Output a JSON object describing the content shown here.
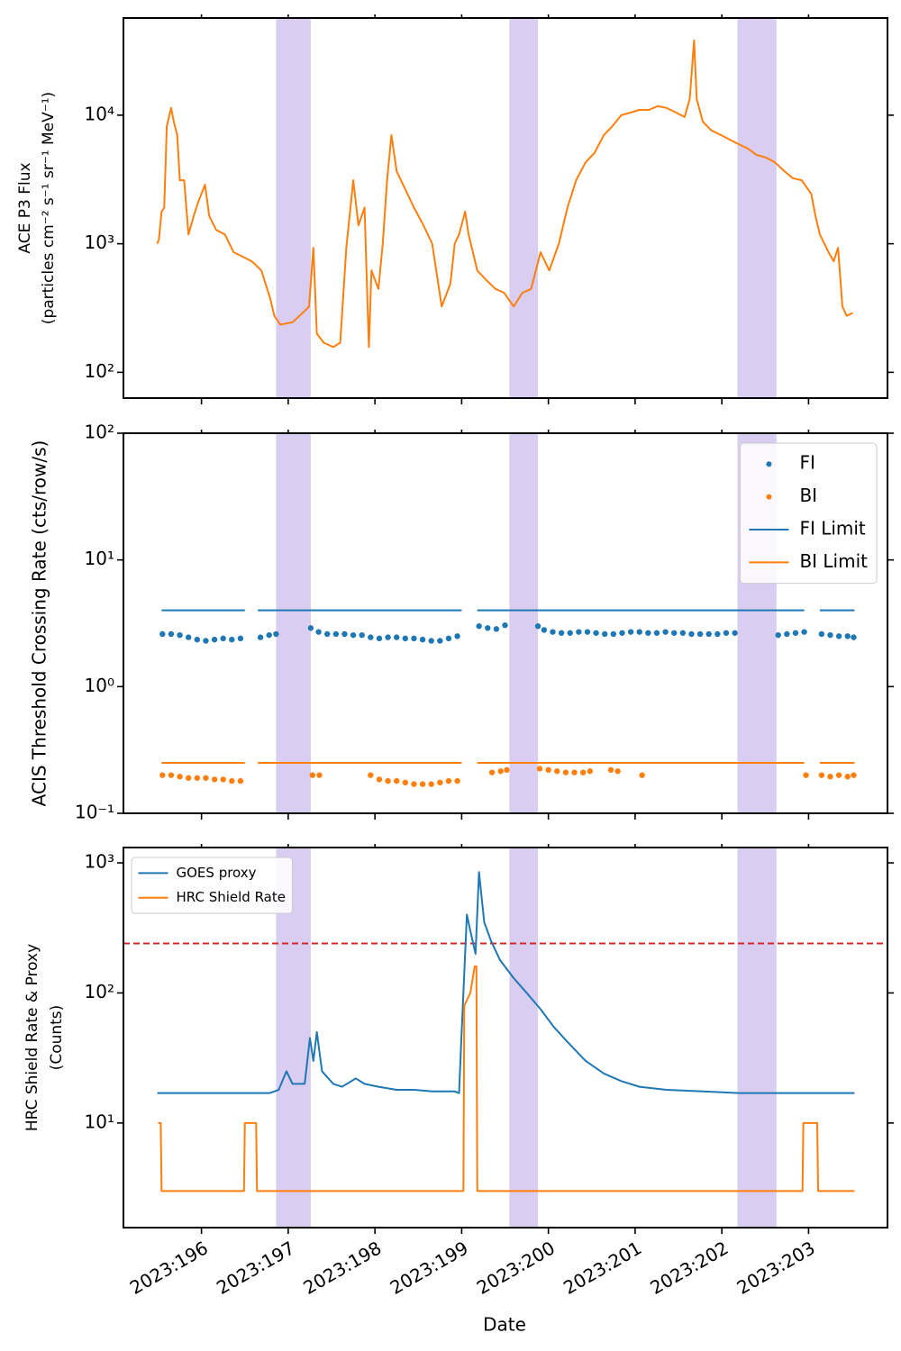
{
  "chart_data": [
    {
      "type": "line",
      "ylabel": [
        "ACE P3 Flux",
        "(particles cm⁻² s⁻¹ sr⁻¹ MeV⁻¹)"
      ],
      "ylog": true,
      "xlim": [
        195.1,
        203.91
      ],
      "ylim": [
        63,
        57000
      ],
      "xticks": [
        196,
        197,
        198,
        199,
        200,
        201,
        202,
        203
      ],
      "yticks": [
        {
          "value": 100,
          "label": "10²"
        },
        {
          "value": 1000,
          "label": "10³"
        },
        {
          "value": 10000,
          "label": "10⁴"
        }
      ],
      "spans": [
        [
          196.86,
          197.26
        ],
        [
          199.55,
          199.88
        ],
        [
          202.18,
          202.63
        ]
      ],
      "span_color": "#9370db",
      "series": [
        {
          "color": "#ff7f0e",
          "x": [
            195.49,
            195.51,
            195.54,
            195.57,
            195.6,
            195.65,
            195.68,
            195.72,
            195.75,
            195.8,
            195.85,
            195.91,
            195.96,
            196.04,
            196.09,
            196.17,
            196.27,
            196.37,
            196.48,
            196.58,
            196.69,
            196.79,
            196.84,
            196.91,
            197.05,
            197.19,
            197.24,
            197.29,
            197.33,
            197.41,
            197.52,
            197.6,
            197.67,
            197.75,
            197.81,
            197.88,
            197.93,
            197.96,
            198.04,
            198.09,
            198.14,
            198.19,
            198.25,
            198.35,
            198.45,
            198.56,
            198.66,
            198.77,
            198.87,
            198.92,
            198.97,
            199.04,
            199.08,
            199.18,
            199.28,
            199.39,
            199.49,
            199.6,
            199.7,
            199.8,
            199.91,
            200.01,
            200.12,
            200.22,
            200.32,
            200.43,
            200.53,
            200.64,
            200.74,
            200.84,
            200.95,
            201.05,
            201.16,
            201.26,
            201.36,
            201.47,
            201.57,
            201.63,
            201.68,
            201.71,
            201.78,
            201.88,
            201.99,
            202.09,
            202.19,
            202.3,
            202.4,
            202.51,
            202.61,
            202.72,
            202.82,
            202.92,
            203.03,
            203.08,
            203.13,
            203.23,
            203.29,
            203.34,
            203.39,
            203.44,
            203.51
          ],
          "values": [
            1000,
            1090,
            1780,
            1910,
            8240,
            11400,
            8930,
            7010,
            3120,
            3120,
            1180,
            1640,
            2090,
            2880,
            1640,
            1280,
            1180,
            860,
            790,
            730,
            620,
            380,
            275,
            235,
            245,
            300,
            325,
            930,
            200,
            170,
            157,
            170,
            930,
            3120,
            1390,
            1910,
            157,
            620,
            445,
            1000,
            3120,
            7010,
            3670,
            2650,
            1910,
            1390,
            1000,
            325,
            490,
            1000,
            1180,
            1780,
            1180,
            620,
            525,
            445,
            415,
            325,
            415,
            445,
            860,
            620,
            1000,
            1910,
            3120,
            4310,
            5070,
            7010,
            8240,
            10000,
            10500,
            11000,
            11000,
            11750,
            11400,
            10500,
            9680,
            13380,
            38200,
            13380,
            8930,
            7600,
            7010,
            6460,
            5970,
            5500,
            4910,
            4680,
            4310,
            3670,
            3230,
            3120,
            2450,
            1640,
            1180,
            860,
            730,
            930,
            325,
            275,
            290
          ]
        }
      ]
    },
    {
      "type": "scatter",
      "ylabel": [
        "ACIS Threshold Crossing Rate (cts/row/s)"
      ],
      "ylog": true,
      "xlim": [
        195.1,
        203.91
      ],
      "ylim": [
        0.1,
        100
      ],
      "xticks": [
        196,
        197,
        198,
        199,
        200,
        201,
        202,
        203
      ],
      "yticks": [
        {
          "value": 0.1,
          "label": "10⁻¹"
        },
        {
          "value": 1,
          "label": "10⁰"
        },
        {
          "value": 10,
          "label": "10¹"
        },
        {
          "value": 100,
          "label": "10²"
        }
      ],
      "spans": [
        [
          196.86,
          197.26
        ],
        [
          199.55,
          199.88
        ],
        [
          202.18,
          202.63
        ]
      ],
      "span_color": "#9370db",
      "legend": "upper right",
      "series": [
        {
          "name": "FI",
          "type": "scatter",
          "color": "#1f77b4",
          "x": [
            195.55,
            195.65,
            195.75,
            195.85,
            195.95,
            196.05,
            196.15,
            196.25,
            196.35,
            196.45,
            196.68,
            196.78,
            196.86,
            197.26,
            197.35,
            197.45,
            197.55,
            197.65,
            197.75,
            197.85,
            197.95,
            198.05,
            198.15,
            198.25,
            198.35,
            198.45,
            198.55,
            198.65,
            198.75,
            198.85,
            198.95,
            199.2,
            199.3,
            199.4,
            199.5,
            199.88,
            199.95,
            200.05,
            200.15,
            200.25,
            200.35,
            200.45,
            200.55,
            200.65,
            200.75,
            200.85,
            200.95,
            201.05,
            201.15,
            201.25,
            201.35,
            201.45,
            201.55,
            201.65,
            201.75,
            201.85,
            201.95,
            202.05,
            202.15,
            202.65,
            202.75,
            202.85,
            202.95,
            203.15,
            203.25,
            203.35,
            203.45,
            203.52
          ],
          "values": [
            2.6,
            2.6,
            2.55,
            2.45,
            2.35,
            2.3,
            2.35,
            2.4,
            2.35,
            2.4,
            2.45,
            2.55,
            2.6,
            2.9,
            2.7,
            2.6,
            2.6,
            2.6,
            2.55,
            2.55,
            2.45,
            2.4,
            2.45,
            2.45,
            2.4,
            2.4,
            2.35,
            2.3,
            2.3,
            2.4,
            2.5,
            3.0,
            2.9,
            2.85,
            3.05,
            3.0,
            2.8,
            2.7,
            2.65,
            2.65,
            2.7,
            2.7,
            2.65,
            2.6,
            2.6,
            2.65,
            2.7,
            2.7,
            2.65,
            2.65,
            2.7,
            2.65,
            2.65,
            2.6,
            2.6,
            2.6,
            2.6,
            2.65,
            2.65,
            2.55,
            2.6,
            2.65,
            2.7,
            2.6,
            2.55,
            2.5,
            2.5,
            2.45
          ]
        },
        {
          "name": "BI",
          "type": "scatter",
          "color": "#ff7f0e",
          "x": [
            195.55,
            195.65,
            195.75,
            195.85,
            195.95,
            196.05,
            196.15,
            196.25,
            196.35,
            196.45,
            197.28,
            197.36,
            197.95,
            198.05,
            198.15,
            198.25,
            198.35,
            198.45,
            198.55,
            198.65,
            198.75,
            198.85,
            198.95,
            199.35,
            199.45,
            199.52,
            199.9,
            200.0,
            200.1,
            200.2,
            200.3,
            200.4,
            200.48,
            200.72,
            200.8,
            201.08,
            202.97,
            203.15,
            203.25,
            203.35,
            203.45,
            203.52
          ],
          "values": [
            0.2,
            0.2,
            0.195,
            0.19,
            0.19,
            0.19,
            0.185,
            0.185,
            0.18,
            0.18,
            0.2,
            0.2,
            0.2,
            0.185,
            0.18,
            0.18,
            0.175,
            0.17,
            0.17,
            0.17,
            0.175,
            0.18,
            0.18,
            0.21,
            0.215,
            0.22,
            0.225,
            0.22,
            0.215,
            0.21,
            0.21,
            0.21,
            0.215,
            0.22,
            0.215,
            0.2,
            0.2,
            0.2,
            0.195,
            0.2,
            0.195,
            0.2
          ]
        },
        {
          "name": "FI Limit",
          "type": "line",
          "color": "#1f77b4",
          "x": [
            195.54,
            196.5,
            196.57,
            196.65,
            199.0,
            199.09,
            199.18,
            202.95,
            203.04,
            203.13,
            203.53
          ],
          "values": [
            4,
            4,
            null,
            4,
            4,
            null,
            4,
            4,
            null,
            4,
            4
          ]
        },
        {
          "name": "BI Limit",
          "type": "line",
          "color": "#ff7f0e",
          "x": [
            195.54,
            196.5,
            196.57,
            196.65,
            199.0,
            199.09,
            199.18,
            202.95,
            203.04,
            203.13,
            203.53
          ],
          "values": [
            0.25,
            0.25,
            null,
            0.25,
            0.25,
            null,
            0.25,
            0.25,
            null,
            0.25,
            0.25
          ]
        }
      ]
    },
    {
      "type": "line",
      "ylabel": [
        "HRC Shield Rate & Proxy",
        "(Counts)"
      ],
      "ylog": true,
      "xlabel": "Date",
      "xlim": [
        195.1,
        203.91
      ],
      "ylim": [
        1.57,
        1312
      ],
      "xticks": [
        {
          "value": 196,
          "label": "2023:196"
        },
        {
          "value": 197,
          "label": "2023:197"
        },
        {
          "value": 198,
          "label": "2023:198"
        },
        {
          "value": 199,
          "label": "2023:199"
        },
        {
          "value": 200,
          "label": "2023:200"
        },
        {
          "value": 201,
          "label": "2023:201"
        },
        {
          "value": 202,
          "label": "2023:202"
        },
        {
          "value": 203,
          "label": "2023:203"
        }
      ],
      "yticks": [
        {
          "value": 10,
          "label": "10¹"
        },
        {
          "value": 100,
          "label": "10²"
        },
        {
          "value": 1000,
          "label": "10³"
        }
      ],
      "spans": [
        [
          196.86,
          197.26
        ],
        [
          199.55,
          199.88
        ],
        [
          202.18,
          202.63
        ]
      ],
      "span_color": "#9370db",
      "hlines": [
        {
          "value": 240,
          "color": "#d62728",
          "style": "dashed"
        }
      ],
      "legend": "upper left",
      "series": [
        {
          "name": "GOES proxy",
          "color": "#1f77b4",
          "x": [
            195.49,
            195.75,
            196.27,
            196.79,
            196.89,
            196.98,
            197.05,
            197.19,
            197.25,
            197.29,
            197.33,
            197.39,
            197.52,
            197.62,
            197.78,
            197.88,
            198.04,
            198.25,
            198.45,
            198.66,
            198.92,
            198.97,
            199.0,
            199.06,
            199.1,
            199.16,
            199.2,
            199.26,
            199.34,
            199.44,
            199.6,
            199.75,
            199.91,
            200.06,
            200.22,
            200.43,
            200.64,
            200.84,
            201.05,
            201.36,
            201.78,
            202.2,
            202.61,
            203.03,
            203.53
          ],
          "values": [
            17,
            17,
            17,
            17,
            18,
            25,
            20,
            20,
            45,
            30,
            50,
            25,
            20,
            19,
            22,
            20,
            19,
            18,
            18,
            17.5,
            17.5,
            17,
            50,
            400,
            300,
            200,
            850,
            350,
            250,
            180,
            130,
            100,
            75,
            55,
            42,
            30,
            24,
            21,
            19,
            18,
            17.5,
            17,
            17,
            17,
            17
          ]
        },
        {
          "name": "HRC Shield Rate",
          "color": "#ff7f0e",
          "x": [
            195.5,
            195.53,
            195.54,
            196.49,
            196.5,
            196.63,
            196.64,
            199.02,
            199.03,
            199.1,
            199.15,
            199.17,
            199.18,
            202.93,
            202.94,
            203.1,
            203.11,
            203.53
          ],
          "values": [
            10,
            10,
            3,
            3,
            10,
            10,
            3,
            3,
            80,
            100,
            160,
            160,
            3,
            3,
            10,
            10,
            3,
            3
          ]
        }
      ]
    }
  ]
}
